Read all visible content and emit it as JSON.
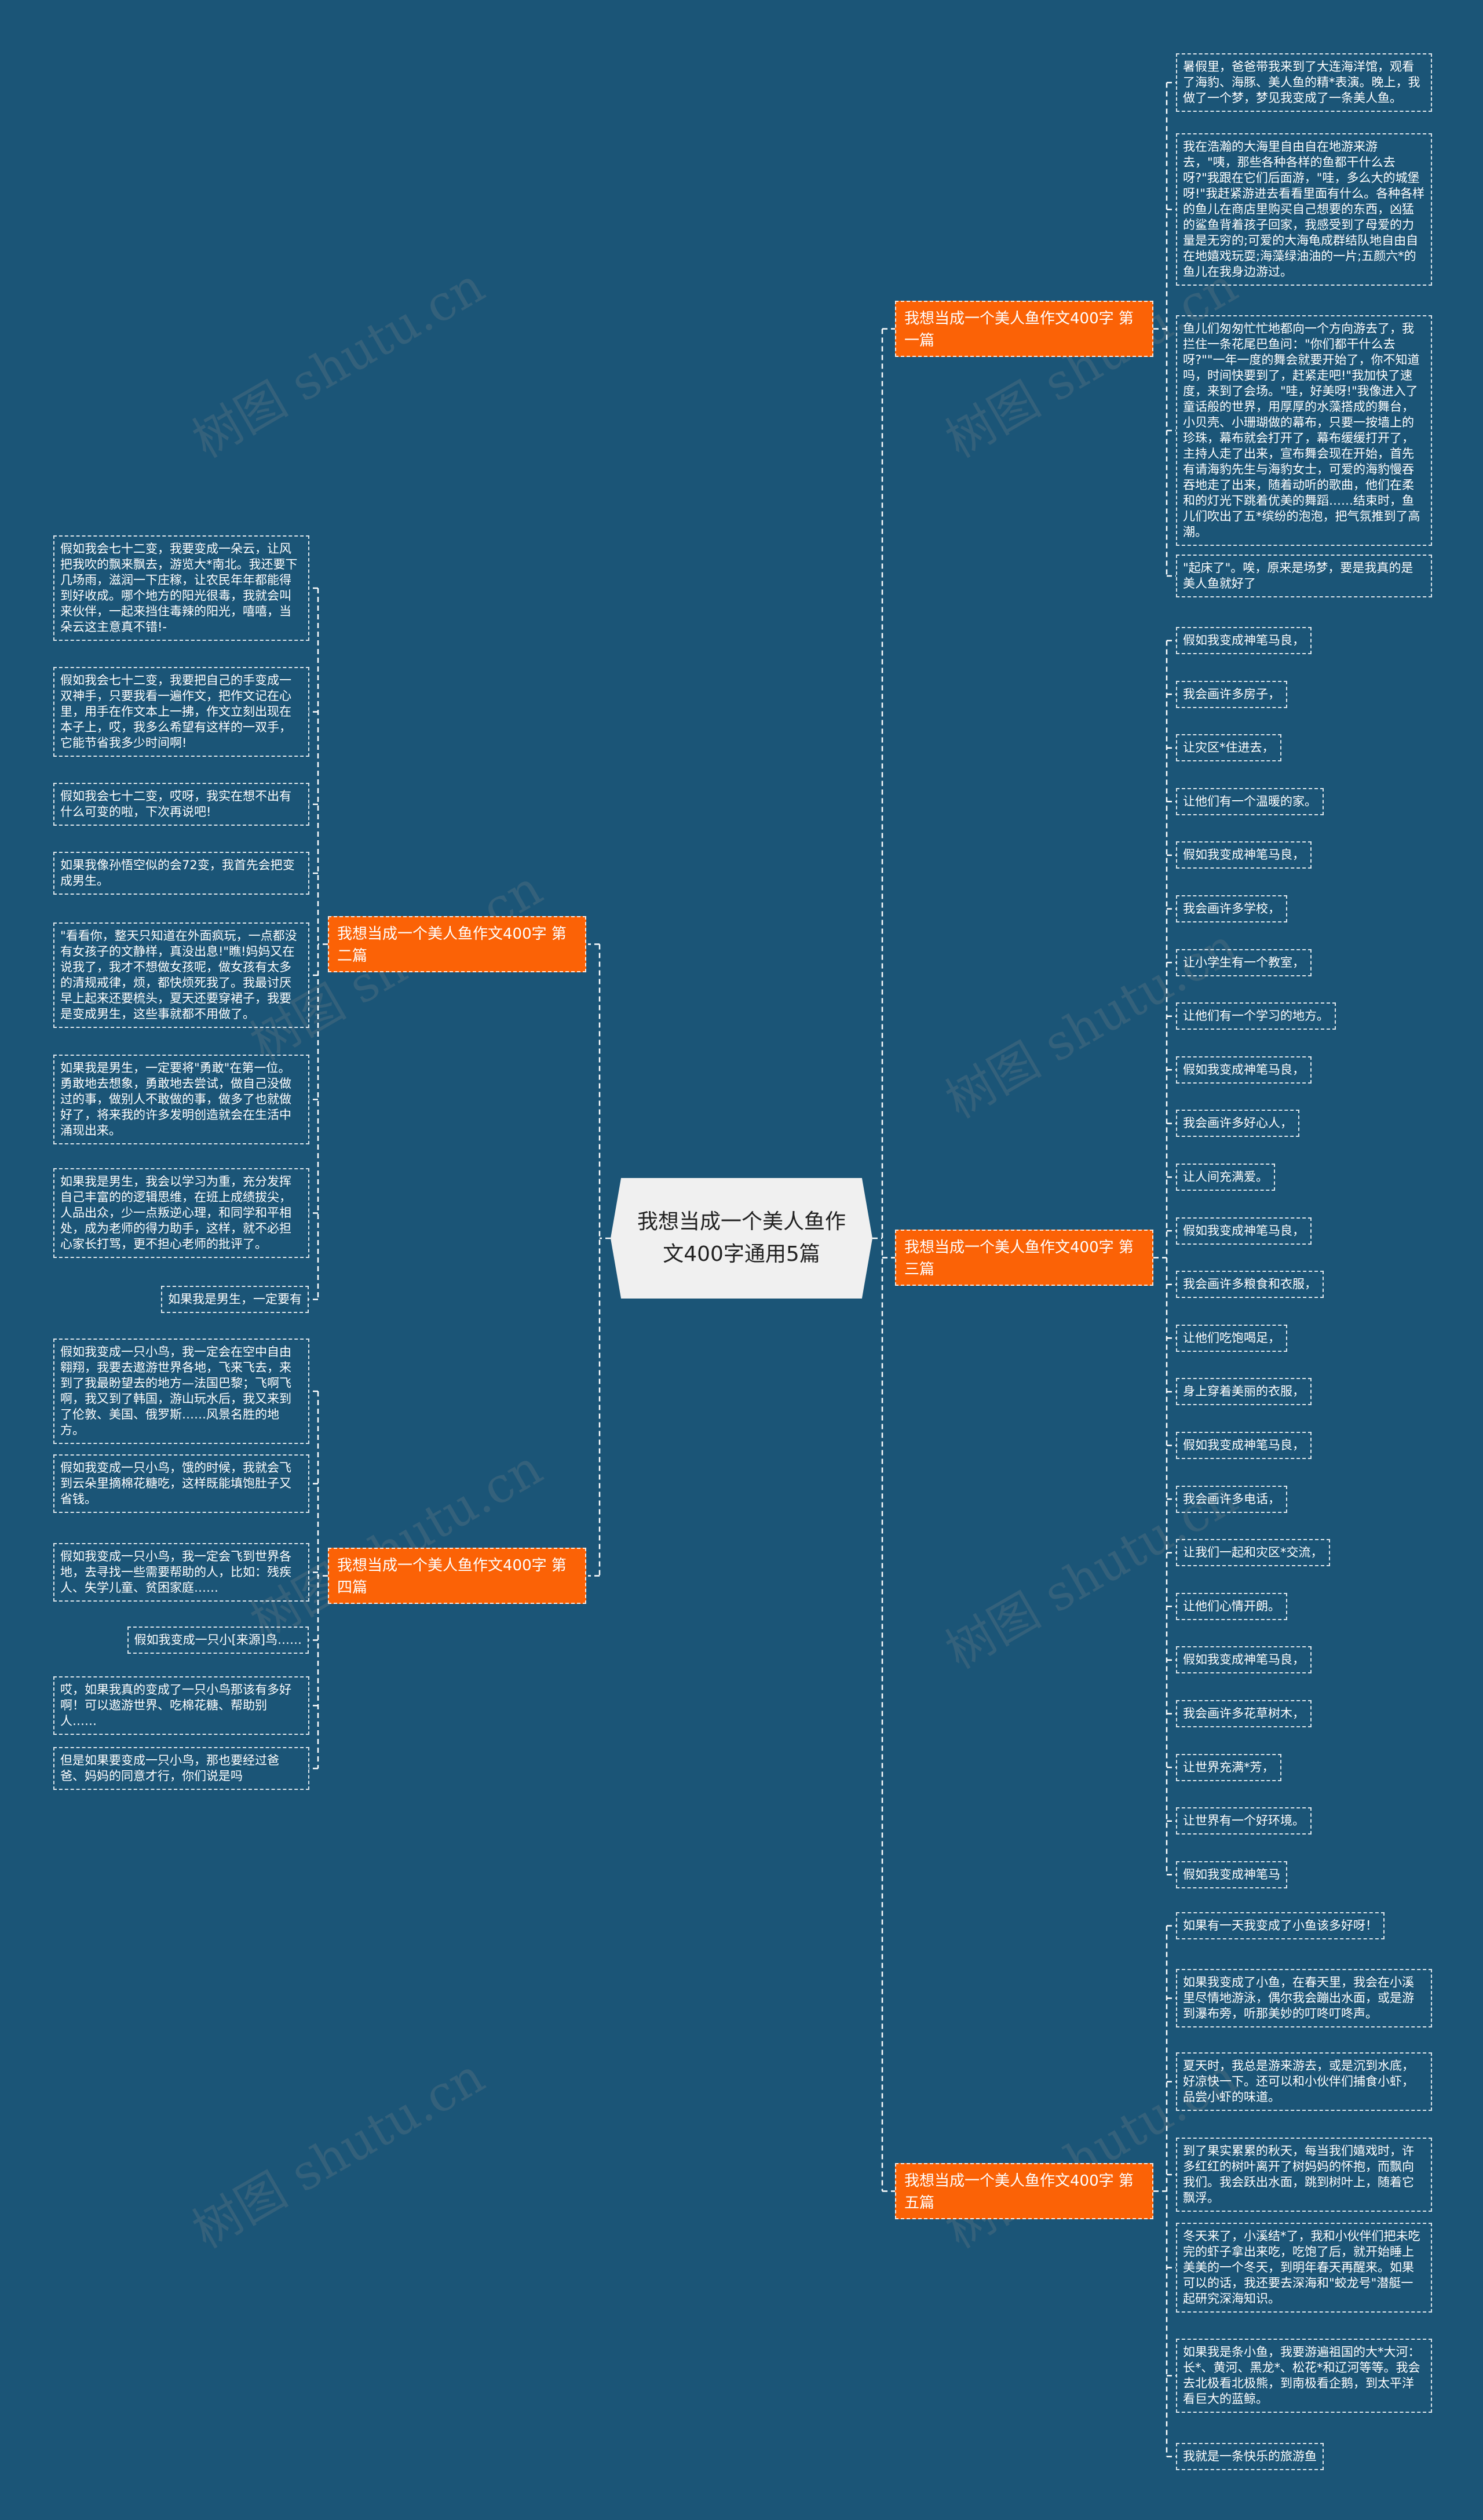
{
  "colors": {
    "background": "#1b5577",
    "branch": "#fb6206",
    "center": "#f0f0f0",
    "connector": "#ffffff"
  },
  "watermark": "树图 shutu.cn",
  "center": {
    "title": "我想当成一个美人鱼作文400字通用5篇"
  },
  "sections": [
    {
      "side": "right",
      "label": "我想当成一个美人鱼作文400字 第一篇",
      "leaves": [
        "暑假里，爸爸带我来到了大连海洋馆，观看了海豹、海豚、美人鱼的精*表演。晚上，我做了一个梦，梦见我变成了一条美人鱼。",
        "我在浩瀚的大海里自由自在地游来游去，\"咦，那些各种各样的鱼都干什么去呀?\"我跟在它们后面游，\"哇，多么大的城堡呀!\"我赶紧游进去看看里面有什么。各种各样的鱼儿在商店里购买自己想要的东西，凶猛的鲨鱼背着孩子回家，我感受到了母爱的力量是无穷的;可爱的大海龟成群结队地自由自在地嬉戏玩耍;海藻绿油油的一片;五颜六*的鱼儿在我身边游过。",
        "鱼儿们匆匆忙忙地都向一个方向游去了，我拦住一条花尾巴鱼问：\"你们都干什么去呀?\"\"一年一度的舞会就要开始了，你不知道吗，时间快要到了，赶紧走吧!\"我加快了速度，来到了会场。\"哇，好美呀!\"我像进入了童话般的世界，用厚厚的水藻搭成的舞台，小贝壳、小珊瑚做的幕布，只要一按墙上的珍珠，幕布就会打开了，幕布缓缓打开了，主持人走了出来，宣布舞会现在开始，首先有请海豹先生与海豹女士，可爱的海豹慢吞吞地走了出来，随着动听的歌曲，他们在柔和的灯光下跳着优美的舞蹈……结束时，鱼儿们吹出了五*缤纷的泡泡，把气氛推到了高潮。",
        "\"起床了\"。唉，原来是场梦，要是我真的是美人鱼就好了"
      ]
    },
    {
      "side": "left",
      "label": "我想当成一个美人鱼作文400字 第二篇",
      "leaves": [
        "假如我会七十二变，我要变成一朵云，让风把我吹的飘来飘去，游览大*南北。我还要下几场雨，滋润一下庄稼，让农民年年都能得到好收成。哪个地方的阳光很毒，我就会叫来伙伴，一起来挡住毒辣的阳光，嘻嘻，当朵云这主意真不错!-",
        "假如我会七十二变，我要把自己的手变成一双神手，只要我看一遍作文，把作文记在心里，用手在作文本上一拂，作文立刻出现在本子上，哎，我多么希望有这样的一双手，它能节省我多少时间啊!",
        "假如我会七十二变，哎呀，我实在想不出有什么可变的啦，下次再说吧!",
        "如果我像孙悟空似的会72变，我首先会把变成男生。",
        "\"看看你，整天只知道在外面疯玩，一点都没有女孩子的文静样，真没出息!\"瞧!妈妈又在说我了，我才不想做女孩呢，做女孩有太多的清规戒律，烦，都快烦死我了。我最讨厌早上起来还要梳头，夏天还要穿裙子，我要是变成男生，这些事就都不用做了。",
        "如果我是男生，一定要将\"勇敢\"在第一位。勇敢地去想象，勇敢地去尝试，做自己没做过的事，做别人不敢做的事，做多了也就做好了，将来我的许多发明创造就会在生活中涌现出来。",
        "如果我是男生，我会以学习为重，充分发挥自己丰富的的逻辑思维，在班上成绩拔尖，人品出众，少一点叛逆心理，和同学和平相处，成为老师的得力助手，这样，就不必担心家长打骂，更不担心老师的批评了。",
        "如果我是男生，一定要有"
      ]
    },
    {
      "side": "right",
      "label": "我想当成一个美人鱼作文400字 第三篇",
      "leaves": [
        "假如我变成神笔马良，",
        "我会画许多房子，",
        "让灾区*住进去，",
        "让他们有一个温暖的家。",
        "假如我变成神笔马良，",
        "我会画许多学校，",
        "让小学生有一个教室，",
        "让他们有一个学习的地方。",
        "假如我变成神笔马良，",
        "我会画许多好心人，",
        "让人间充满爱。",
        "假如我变成神笔马良，",
        "我会画许多粮食和衣服，",
        "让他们吃饱喝足，",
        "身上穿着美丽的衣服，",
        "假如我变成神笔马良，",
        "我会画许多电话，",
        "让我们一起和灾区*交流，",
        "让他们心情开朗。",
        "假如我变成神笔马良，",
        "我会画许多花草树木，",
        "让世界充满*芳，",
        "让世界有一个好环境。",
        "假如我变成神笔马"
      ]
    },
    {
      "side": "left",
      "label": "我想当成一个美人鱼作文400字 第四篇",
      "leaves": [
        "假如我变成一只小鸟，我一定会在空中自由翱翔，我要去遨游世界各地，飞来飞去，来到了我最盼望去的地方—法国巴黎；飞啊飞啊，我又到了韩国，游山玩水后，我又来到了伦敦、美国、俄罗斯……风景名胜的地方。",
        "假如我变成一只小鸟，饿的时候，我就会飞到云朵里摘棉花糖吃，这样既能填饱肚子又省钱。",
        "假如我变成一只小鸟，我一定会飞到世界各地，去寻找一些需要帮助的人，比如：残疾人、失学儿童、贫困家庭……",
        "假如我变成一只小[来源]鸟……",
        "哎，如果我真的变成了一只小鸟那该有多好啊！可以遨游世界、吃棉花糖、帮助别人……",
        "但是如果要变成一只小鸟，那也要经过爸爸、妈妈的同意才行，你们说是吗"
      ]
    },
    {
      "side": "right",
      "label": "我想当成一个美人鱼作文400字 第五篇",
      "leaves": [
        "如果有一天我变成了小鱼该多好呀！",
        "如果我变成了小鱼，在春天里，我会在小溪里尽情地游泳，偶尔我会蹦出水面，或是游到瀑布旁，听那美妙的叮咚叮咚声。",
        "夏天时，我总是游来游去，或是沉到水底，好凉快一下。还可以和小伙伴们捕食小虾，品尝小虾的味道。",
        "到了果实累累的秋天，每当我们嬉戏时，许多红红的树叶离开了树妈妈的怀抱，而飘向我们。我会跃出水面，跳到树叶上，随着它飘浮。",
        "冬天来了，小溪结*了，我和小伙伴们把未吃完的虾子拿出来吃，吃饱了后，就开始睡上美美的一个冬天，到明年春天再醒来。如果可以的话，我还要去深海和\"蛟龙号\"潜艇一起研究深海知识。",
        "如果我是条小鱼，我要游遍祖国的大*大河：长*、黄河、黑龙*、松花*和辽河等等。我会去北极看北极熊，到南极看企鹅，到太平洋看巨大的蓝鲸。",
        "我就是一条快乐的旅游鱼"
      ]
    }
  ]
}
